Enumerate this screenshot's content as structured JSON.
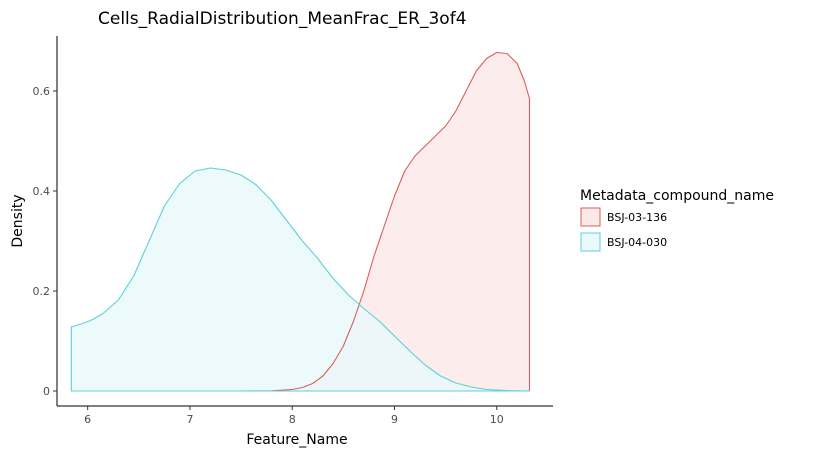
{
  "chart_data": {
    "type": "area",
    "subtype": "density",
    "title": "Cells_RadialDistribution_MeanFrac_ER_3of4",
    "xlabel": "Feature_Name",
    "ylabel": "Density",
    "xlim": [
      5.7,
      10.55
    ],
    "ylim": [
      -0.03,
      0.71
    ],
    "xticks": [
      6,
      7,
      8,
      9,
      10
    ],
    "yticks": [
      0,
      0.2,
      0.4,
      0.6
    ],
    "ytick_labels": [
      "0",
      "0.2",
      "0.4",
      "0.6"
    ],
    "grid": false,
    "legend": {
      "title": "Metadata_compound_name",
      "position": "right"
    },
    "series": [
      {
        "name": "BSJ-03-136",
        "color": "#d95f5a",
        "fill": "#fbe9e8",
        "points": [
          [
            5.84,
            0
          ],
          [
            7.5,
            0
          ],
          [
            7.8,
            0.0005
          ],
          [
            8.0,
            0.003
          ],
          [
            8.1,
            0.007
          ],
          [
            8.2,
            0.015
          ],
          [
            8.3,
            0.03
          ],
          [
            8.4,
            0.055
          ],
          [
            8.5,
            0.09
          ],
          [
            8.6,
            0.14
          ],
          [
            8.7,
            0.2
          ],
          [
            8.8,
            0.27
          ],
          [
            8.9,
            0.33
          ],
          [
            9.0,
            0.39
          ],
          [
            9.1,
            0.44
          ],
          [
            9.2,
            0.47
          ],
          [
            9.3,
            0.49
          ],
          [
            9.4,
            0.51
          ],
          [
            9.5,
            0.53
          ],
          [
            9.6,
            0.56
          ],
          [
            9.7,
            0.6
          ],
          [
            9.8,
            0.64
          ],
          [
            9.9,
            0.665
          ],
          [
            10.0,
            0.677
          ],
          [
            10.1,
            0.675
          ],
          [
            10.2,
            0.655
          ],
          [
            10.27,
            0.62
          ],
          [
            10.32,
            0.585
          ],
          [
            10.32,
            0
          ]
        ]
      },
      {
        "name": "BSJ-04-030",
        "color": "#5ecfdc",
        "fill": "#eaf9fb",
        "points": [
          [
            5.84,
            0
          ],
          [
            5.84,
            0.128
          ],
          [
            5.95,
            0.135
          ],
          [
            6.05,
            0.143
          ],
          [
            6.15,
            0.155
          ],
          [
            6.3,
            0.182
          ],
          [
            6.45,
            0.23
          ],
          [
            6.6,
            0.3
          ],
          [
            6.75,
            0.37
          ],
          [
            6.9,
            0.415
          ],
          [
            7.05,
            0.44
          ],
          [
            7.2,
            0.446
          ],
          [
            7.35,
            0.442
          ],
          [
            7.5,
            0.432
          ],
          [
            7.65,
            0.412
          ],
          [
            7.8,
            0.38
          ],
          [
            7.95,
            0.34
          ],
          [
            8.1,
            0.3
          ],
          [
            8.25,
            0.265
          ],
          [
            8.4,
            0.225
          ],
          [
            8.55,
            0.192
          ],
          [
            8.7,
            0.165
          ],
          [
            8.85,
            0.14
          ],
          [
            9.0,
            0.11
          ],
          [
            9.15,
            0.08
          ],
          [
            9.3,
            0.052
          ],
          [
            9.45,
            0.03
          ],
          [
            9.6,
            0.016
          ],
          [
            9.75,
            0.008
          ],
          [
            9.9,
            0.003
          ],
          [
            10.1,
            0.0008
          ],
          [
            10.32,
            0
          ]
        ]
      }
    ]
  }
}
